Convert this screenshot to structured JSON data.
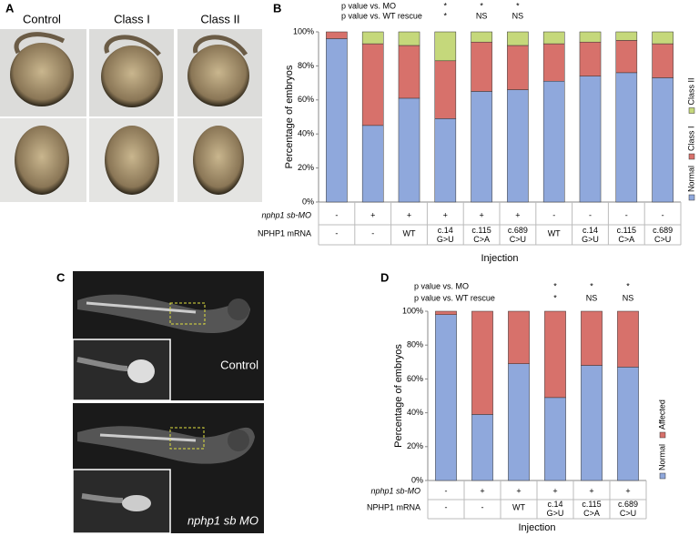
{
  "panels": {
    "a": {
      "label": "A",
      "captions": [
        "Control",
        "Class I",
        "Class II"
      ]
    },
    "b": {
      "label": "B"
    },
    "c": {
      "label": "C",
      "captions": [
        "Control",
        "nphp1 sb MO"
      ]
    },
    "d": {
      "label": "D"
    }
  },
  "chart_data": [
    {
      "type": "stacked-bar",
      "y_label": "Percentage of embryos",
      "x_label": "Injection",
      "ylim": [
        0,
        100
      ],
      "yticks": [
        {
          "value": 0,
          "label": "0%"
        },
        {
          "value": 20,
          "label": "20%"
        },
        {
          "value": 40,
          "label": "40%"
        },
        {
          "value": 60,
          "label": "60%"
        },
        {
          "value": 80,
          "label": "80%"
        },
        {
          "value": 100,
          "label": "100%"
        }
      ],
      "annotations": [
        {
          "label": "p value vs. MO",
          "marks": [
            null,
            null,
            null,
            "*",
            "*",
            "*",
            null,
            null,
            null,
            null
          ]
        },
        {
          "label": "p value vs. WT rescue",
          "marks": [
            null,
            null,
            null,
            "*",
            "NS",
            "NS",
            null,
            null,
            null,
            null
          ]
        }
      ],
      "rows": [
        {
          "label": "nphp1 sb-MO",
          "cells": [
            "-",
            "+",
            "+",
            "+",
            "+",
            "+",
            "-",
            "-",
            "-",
            "-"
          ]
        },
        {
          "label": "NPHP1 mRNA",
          "cells": [
            "-",
            "-",
            "WT",
            "c.14 G>U",
            "c.115 C>A",
            "c.689 C>U",
            "WT",
            "c.14 G>U",
            "c.115 C>A",
            "c.689 C>U"
          ]
        }
      ],
      "series": [
        {
          "name": "Normal",
          "color": "#8fa8dc",
          "values": [
            96,
            45,
            61,
            49,
            65,
            66,
            71,
            74,
            76,
            73
          ]
        },
        {
          "name": "Class I",
          "color": "#d7716b",
          "values": [
            4,
            48,
            31,
            34,
            29,
            26,
            22,
            20,
            19,
            20
          ]
        },
        {
          "name": "Class II",
          "color": "#c5d87b",
          "values": [
            0,
            7,
            8,
            17,
            6,
            8,
            7,
            6,
            5,
            7
          ]
        }
      ]
    },
    {
      "type": "stacked-bar",
      "y_label": "Percentage of embryos",
      "x_label": "Injection",
      "ylim": [
        0,
        100
      ],
      "yticks": [
        {
          "value": 0,
          "label": "0%"
        },
        {
          "value": 20,
          "label": "20%"
        },
        {
          "value": 40,
          "label": "40%"
        },
        {
          "value": 60,
          "label": "60%"
        },
        {
          "value": 80,
          "label": "80%"
        },
        {
          "value": 100,
          "label": "100%"
        }
      ],
      "annotations": [
        {
          "label": "p value vs. MO",
          "marks": [
            null,
            null,
            null,
            "*",
            "*",
            "*"
          ]
        },
        {
          "label": "p value vs. WT rescue",
          "marks": [
            null,
            null,
            null,
            "*",
            "NS",
            "NS"
          ]
        }
      ],
      "rows": [
        {
          "label": "nphp1 sb-MO",
          "cells": [
            "-",
            "+",
            "+",
            "+",
            "+",
            "+"
          ]
        },
        {
          "label": "NPHP1 mRNA",
          "cells": [
            "-",
            "-",
            "WT",
            "c.14 G>U",
            "c.115 C>A",
            "c.689 C>U"
          ]
        }
      ],
      "series": [
        {
          "name": "Normal",
          "color": "#8fa8dc",
          "values": [
            98,
            39,
            69,
            49,
            68,
            67
          ]
        },
        {
          "name": "Affected",
          "color": "#d7716b",
          "values": [
            2,
            61,
            31,
            51,
            32,
            33
          ]
        }
      ]
    }
  ]
}
